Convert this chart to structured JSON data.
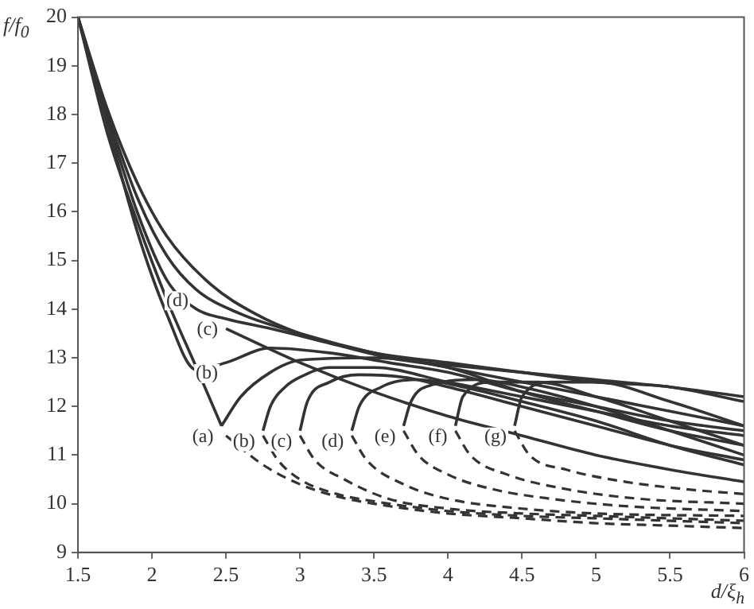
{
  "chart_data": {
    "type": "line",
    "xlabel": "d/ξ$_{h}$",
    "ylabel": "f/f$_{0}$",
    "xlim": [
      1.5,
      6
    ],
    "ylim": [
      9,
      20
    ],
    "xticks": [
      1.5,
      2,
      2.5,
      3,
      3.5,
      4,
      4.5,
      5,
      5.5,
      6
    ],
    "yticks": [
      9,
      10,
      11,
      12,
      13,
      14,
      15,
      16,
      17,
      18,
      19,
      20
    ],
    "grid": false,
    "legend": false,
    "marker": "none",
    "series": [
      {
        "color": "#333333",
        "x": [
          1.5,
          1.7,
          1.9,
          2.1,
          2.3,
          2.47
        ],
        "values": [
          20,
          17.6,
          15.8,
          14.2,
          12.8,
          11.6
        ]
      },
      {
        "color": "#333333",
        "x": [
          2.47,
          2.6,
          2.8,
          3,
          3.5,
          4,
          4.5,
          5,
          5.5,
          6
        ],
        "values": [
          11.6,
          12.2,
          12.7,
          12.95,
          13.0,
          12.85,
          12.7,
          12.55,
          12.4,
          12.2
        ]
      },
      {
        "color": "#333333",
        "x": [
          1.5,
          1.7,
          1.9,
          2.1,
          2.3,
          2.5,
          2.8,
          3.2,
          3.6,
          4,
          4.5,
          5,
          5.5,
          6
        ],
        "values": [
          20,
          17.8,
          15.6,
          13.9,
          12.75,
          12.9,
          13.2,
          13.1,
          12.9,
          12.7,
          12.3,
          12.0,
          11.7,
          11.5
        ]
      },
      {
        "color": "#333333",
        "x": [
          2.75,
          2.8,
          2.9,
          3,
          3.2,
          3.5,
          4,
          4.5,
          5,
          5.5,
          6
        ],
        "values": [
          11.5,
          12.0,
          12.4,
          12.6,
          12.8,
          12.8,
          12.5,
          12.2,
          11.9,
          11.6,
          11.4
        ]
      },
      {
        "color": "#333333",
        "x": [
          1.5,
          1.7,
          1.9,
          2.1,
          2.3,
          2.5,
          2.8,
          3.2,
          3.6,
          4,
          4.5,
          5,
          5.5,
          6
        ],
        "values": [
          20,
          17.9,
          16.0,
          14.6,
          14.0,
          13.8,
          13.6,
          13.3,
          13.0,
          12.8,
          12.3,
          11.9,
          11.5,
          11.2
        ]
      },
      {
        "color": "#333333",
        "x": [
          3,
          3.05,
          3.2,
          3.4,
          3.7,
          4,
          4.5,
          5,
          5.5,
          6
        ],
        "values": [
          11.5,
          12.1,
          12.5,
          12.65,
          12.6,
          12.4,
          12.0,
          11.6,
          11.2,
          10.9
        ]
      },
      {
        "color": "#333333",
        "x": [
          1.5,
          1.7,
          1.9,
          2.1,
          2.3,
          2.6,
          3,
          3.5,
          4,
          4.5,
          5,
          5.5,
          6
        ],
        "values": [
          20,
          18.0,
          16.3,
          15.1,
          14.4,
          13.9,
          13.5,
          13.1,
          12.8,
          12.5,
          12.2,
          11.9,
          11.6
        ]
      },
      {
        "color": "#333333",
        "x": [
          3.35,
          3.4,
          3.55,
          3.8,
          4.1,
          4.5,
          5,
          5.5,
          6
        ],
        "values": [
          11.5,
          12.0,
          12.4,
          12.55,
          12.4,
          12.1,
          11.7,
          11.2,
          10.8
        ]
      },
      {
        "color": "#333333",
        "x": [
          1.5,
          1.7,
          1.9,
          2.1,
          2.4,
          2.7,
          3,
          3.5,
          4,
          4.5,
          5,
          5.5,
          6
        ],
        "values": [
          20,
          18.1,
          16.6,
          15.5,
          14.5,
          13.9,
          13.5,
          13.1,
          12.9,
          12.7,
          12.5,
          12.4,
          12.1
        ]
      },
      {
        "color": "#333333",
        "x": [
          3.7,
          3.75,
          3.9,
          4.2,
          4.5,
          5,
          5.5,
          6
        ],
        "values": [
          11.6,
          12.1,
          12.45,
          12.55,
          12.4,
          12.0,
          11.5,
          11.0
        ]
      },
      {
        "color": "#333333",
        "x": [
          4.05,
          4.1,
          4.3,
          4.6,
          5,
          5.5,
          6
        ],
        "values": [
          11.6,
          12.2,
          12.5,
          12.5,
          12.2,
          11.7,
          11.2
        ]
      },
      {
        "color": "#333333",
        "x": [
          4.45,
          4.5,
          4.7,
          5,
          5.5,
          6
        ],
        "values": [
          11.6,
          12.2,
          12.5,
          12.5,
          12.1,
          11.6
        ]
      },
      {
        "color": "#333333",
        "x": [
          2.5,
          3,
          3.5,
          4,
          4.5,
          5,
          5.5,
          6
        ],
        "values": [
          13.6,
          12.9,
          12.3,
          11.8,
          11.4,
          11.0,
          10.7,
          10.45
        ]
      },
      {
        "color": "#333333",
        "line_style": "dashed",
        "x": [
          2.5,
          2.75,
          3,
          3.25,
          3.5,
          4,
          4.5,
          5,
          5.5,
          6
        ],
        "values": [
          11.4,
          10.8,
          10.4,
          10.15,
          10.0,
          9.8,
          9.7,
          9.6,
          9.55,
          9.5
        ]
      },
      {
        "color": "#333333",
        "line_style": "dashed",
        "x": [
          2.75,
          2.85,
          3,
          3.25,
          3.5,
          4,
          4.5,
          5,
          6
        ],
        "values": [
          11.4,
          10.9,
          10.5,
          10.2,
          10.05,
          9.85,
          9.75,
          9.7,
          9.6
        ]
      },
      {
        "color": "#333333",
        "line_style": "dashed",
        "x": [
          3,
          3.1,
          3.3,
          3.6,
          4,
          4.5,
          5,
          6
        ],
        "values": [
          11.4,
          10.9,
          10.5,
          10.1,
          9.9,
          9.8,
          9.75,
          9.65
        ]
      },
      {
        "color": "#333333",
        "line_style": "dashed",
        "x": [
          3.35,
          3.45,
          3.7,
          4,
          4.5,
          5,
          6
        ],
        "values": [
          11.4,
          10.9,
          10.4,
          10.1,
          9.9,
          9.8,
          9.75
        ]
      },
      {
        "color": "#333333",
        "line_style": "dashed",
        "x": [
          3.7,
          3.8,
          4,
          4.3,
          4.7,
          5.2,
          6
        ],
        "values": [
          11.5,
          11.0,
          10.6,
          10.3,
          10.1,
          9.95,
          9.85
        ]
      },
      {
        "color": "#333333",
        "line_style": "dashed",
        "x": [
          4.05,
          4.15,
          4.4,
          4.8,
          5.3,
          6
        ],
        "values": [
          11.5,
          11.0,
          10.6,
          10.3,
          10.1,
          10.0
        ]
      },
      {
        "color": "#333333",
        "line_style": "dashed",
        "x": [
          4.45,
          4.55,
          4.8,
          5.2,
          5.6,
          6
        ],
        "values": [
          11.5,
          11.0,
          10.7,
          10.45,
          10.3,
          10.2
        ]
      }
    ],
    "annotations": [
      {
        "text": "(d)",
        "x": 2.3,
        "y": 14.4
      },
      {
        "text": "(c)",
        "x": 2.5,
        "y": 13.8
      },
      {
        "text": "(b)",
        "x": 2.5,
        "y": 12.9
      },
      {
        "text": "(a)",
        "x": 2.47,
        "y": 11.6
      },
      {
        "text": "(b)",
        "x": 2.75,
        "y": 11.5
      },
      {
        "text": "(c)",
        "x": 3,
        "y": 11.5
      },
      {
        "text": "(d)",
        "x": 3.35,
        "y": 11.5
      },
      {
        "text": "(e)",
        "x": 3.7,
        "y": 11.6
      },
      {
        "text": "(f)",
        "x": 4.05,
        "y": 11.6
      },
      {
        "text": "(g)",
        "x": 4.45,
        "y": 11.6
      }
    ]
  }
}
